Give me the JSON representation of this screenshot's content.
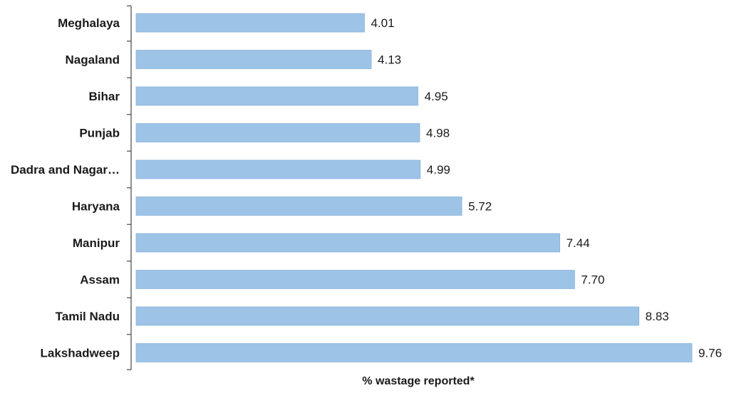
{
  "chart_data": {
    "type": "bar",
    "orientation": "horizontal",
    "categories": [
      "Meghalaya",
      "Nagaland",
      "Bihar",
      "Punjab",
      "Dadra and Nagar…",
      "Haryana",
      "Manipur",
      "Assam",
      "Tamil Nadu",
      "Lakshadweep"
    ],
    "values": [
      4.01,
      4.13,
      4.95,
      4.98,
      4.99,
      5.72,
      7.44,
      7.7,
      8.83,
      9.76
    ],
    "value_labels": [
      "4.01",
      "4.13",
      "4.95",
      "4.98",
      "4.99",
      "5.72",
      "7.44",
      "7.70",
      "8.83",
      "9.76"
    ],
    "title": "",
    "xlabel": "% wastage reported*",
    "ylabel": "",
    "xlim": [
      0,
      9.76
    ],
    "grid": false,
    "legend": "none",
    "colors": {
      "bar_fill": "#9dc3e6",
      "bar_stroke": "#8cb4dc",
      "axis": "#555555",
      "text": "#1a1a1a"
    }
  }
}
